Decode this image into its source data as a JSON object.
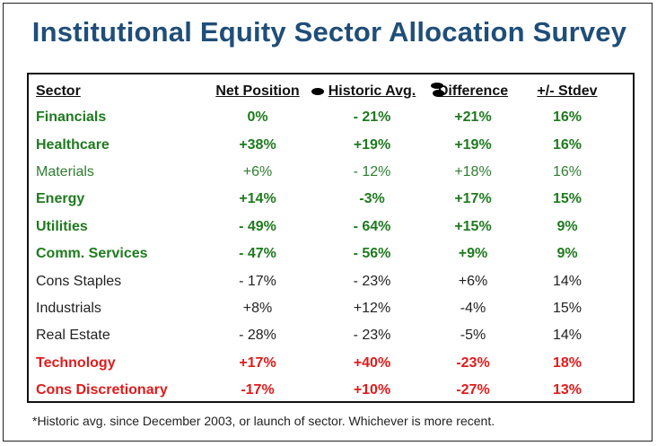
{
  "title": "Institutional Equity Sector Allocation Survey",
  "headers": {
    "sector": "Sector",
    "net": "Net Position",
    "hist": "Historic Avg.",
    "diff": "Difference",
    "std": "+/- Stdev"
  },
  "rows": [
    {
      "sector": "Financials",
      "net": "0%",
      "hist": "- 21%",
      "diff": "+21%",
      "std": "16%"
    },
    {
      "sector": "Healthcare",
      "net": "+38%",
      "hist": "+19%",
      "diff": "+19%",
      "std": "16%"
    },
    {
      "sector": "Materials",
      "net": "+6%",
      "hist": "- 12%",
      "diff": "+18%",
      "std": "16%"
    },
    {
      "sector": "Energy",
      "net": "+14%",
      "hist": "-3%",
      "diff": "+17%",
      "std": "15%"
    },
    {
      "sector": "Utilities",
      "net": "- 49%",
      "hist": "- 64%",
      "diff": "+15%",
      "std": "9%"
    },
    {
      "sector": "Comm. Services",
      "net": "- 47%",
      "hist": "- 56%",
      "diff": "+9%",
      "std": "9%"
    },
    {
      "sector": "Cons Staples",
      "net": "- 17%",
      "hist": "- 23%",
      "diff": "+6%",
      "std": "14%"
    },
    {
      "sector": "Industrials",
      "net": "+8%",
      "hist": "+12%",
      "diff": "-4%",
      "std": "15%"
    },
    {
      "sector": "Real Estate",
      "net": "- 28%",
      "hist": "- 23%",
      "diff": "-5%",
      "std": "14%"
    },
    {
      "sector": "Technology",
      "net": "+17%",
      "hist": "+40%",
      "diff": "-23%",
      "std": "18%"
    },
    {
      "sector": "Cons Discretionary",
      "net": "-17%",
      "hist": "+10%",
      "diff": "-27%",
      "std": "13%"
    }
  ],
  "footnote": "*Historic avg. since December 2003, or launch of sector. Whichever is more recent.",
  "colors": {
    "title": "#1f4e79",
    "positive": "#1f7a1f",
    "neutral": "#222222",
    "negative": "#e01b1b"
  }
}
